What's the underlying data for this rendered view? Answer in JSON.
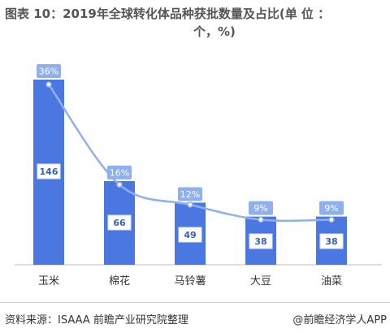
{
  "title": {
    "line1": "图表 10：2019年全球转化体品种获批数量及占比(单 位 ：",
    "line2": "个，%)"
  },
  "source": "资料来源：ISAAA 前瞻产业研究院整理",
  "credit": "@前瞻经济学人APP",
  "colors": {
    "bar": "#4a78e0",
    "pct_badge": "#8fb0ee",
    "line": "#8fb0ee",
    "value_box_border": "#dde6fb",
    "value_text": "#3a5fb8",
    "axis": "#bfbfbf"
  },
  "chart_data": {
    "type": "bar",
    "categories": [
      "玉米",
      "棉花",
      "马铃薯",
      "大豆",
      "油菜"
    ],
    "series": [
      {
        "values": [
          146,
          66,
          49,
          38,
          38
        ]
      },
      {
        "values": [
          36,
          16,
          12,
          9,
          9
        ]
      }
    ],
    "value_labels": [
      "146",
      "66",
      "49",
      "38",
      "38"
    ],
    "pct_labels": [
      "36%",
      "16%",
      "12%",
      "9%",
      "9%"
    ],
    "ylim": [
      0,
      160
    ],
    "grid": false,
    "legend": "none"
  }
}
